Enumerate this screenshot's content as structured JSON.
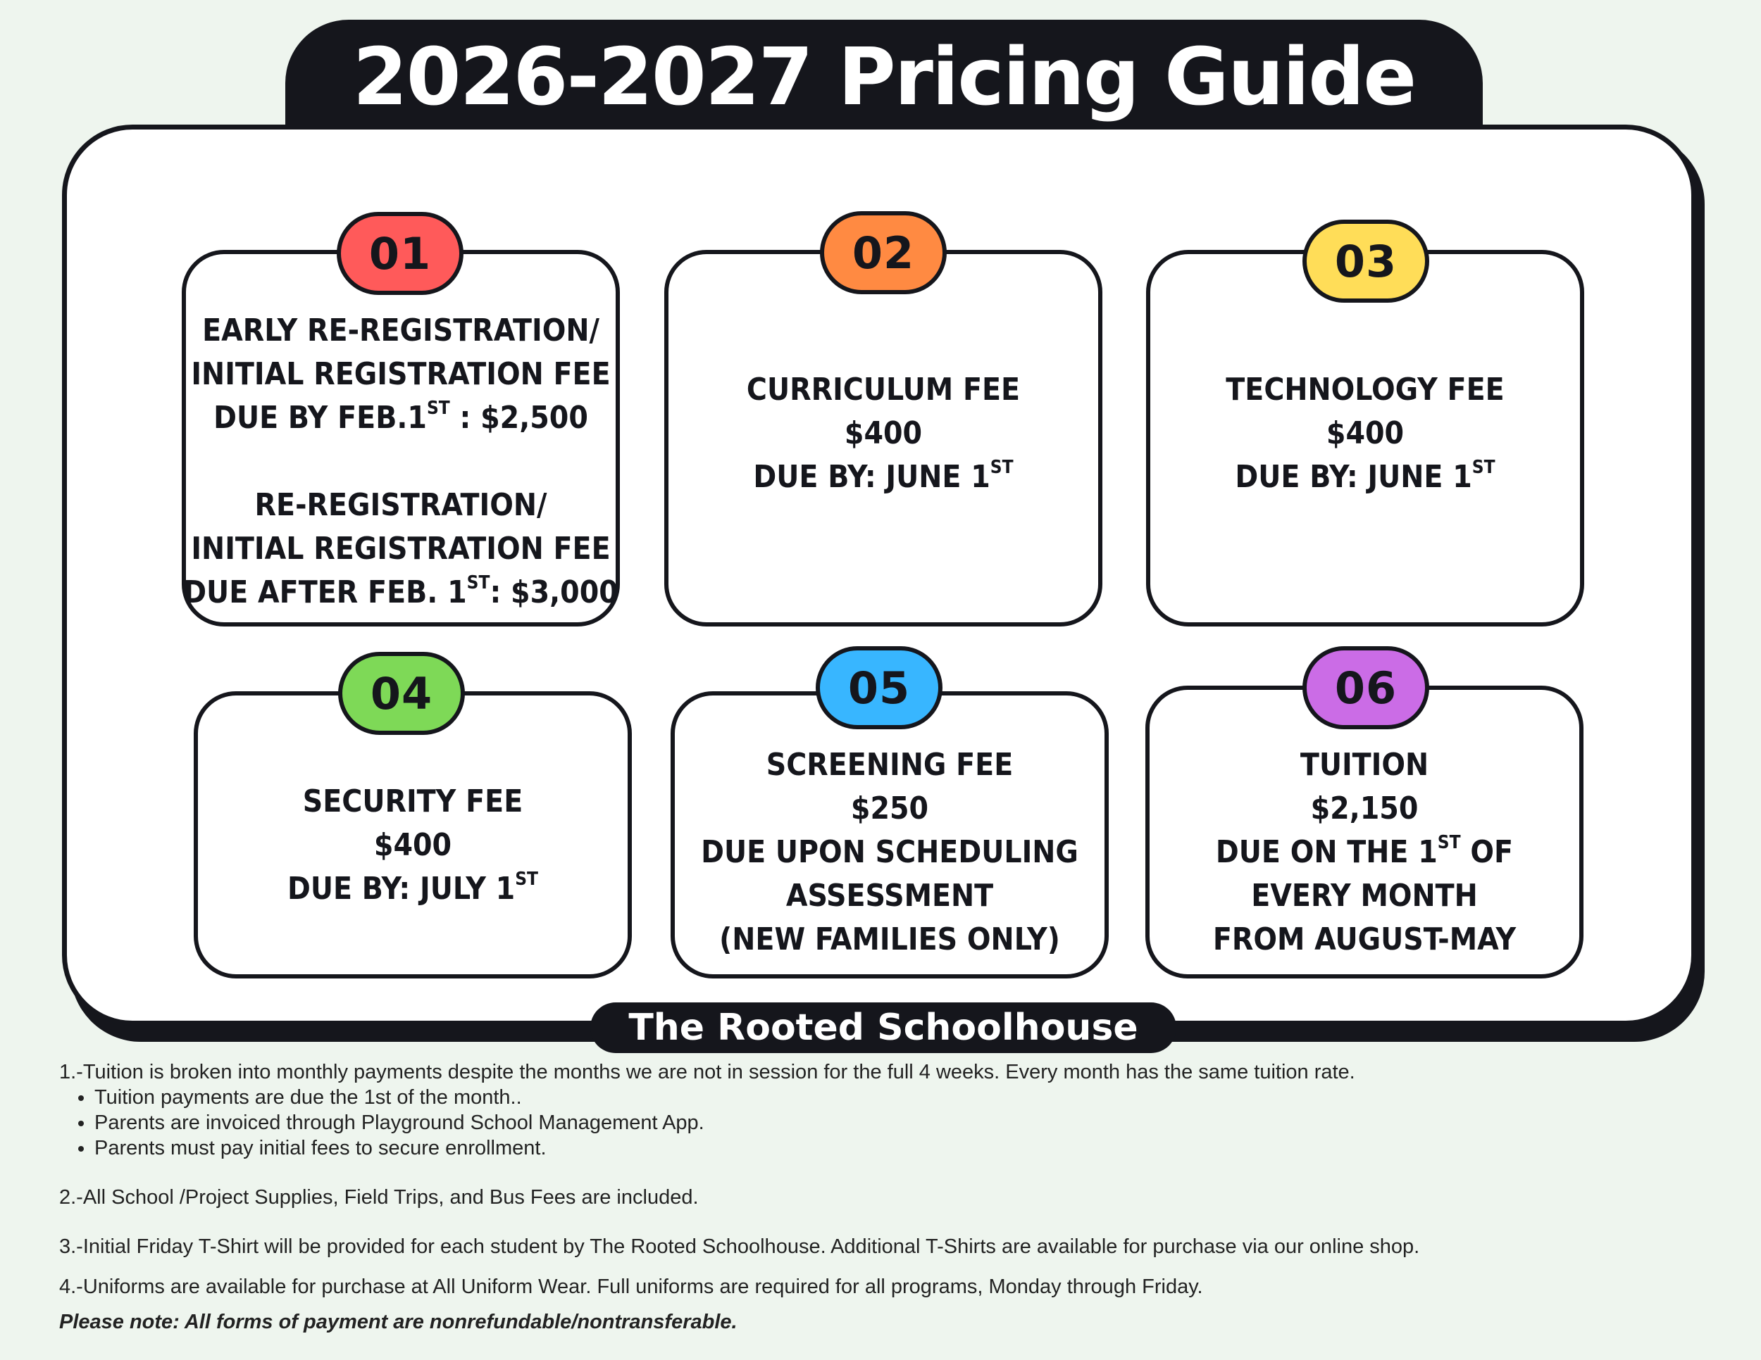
{
  "title": "2026-2027 Pricing Guide",
  "footer_title": "The Rooted Schoolhouse",
  "colors": {
    "dark": "#15161c",
    "badge_01": "#ff5a5a",
    "badge_02": "#ff8a42",
    "badge_03": "#ffdd58",
    "badge_04": "#7ed957",
    "badge_05": "#38b6ff",
    "badge_06": "#cb6ce6"
  },
  "cards": [
    {
      "badge": "01",
      "lines": [
        "EARLY RE-REGISTRATION/",
        "INITIAL REGISTRATION FEE",
        "DUE BY FEB.1",
        "ST",
        " : $2,500",
        "RE-REGISTRATION/",
        "INITIAL REGISTRATION FEE",
        "DUE AFTER FEB. 1",
        "ST",
        ": $3,000"
      ]
    },
    {
      "badge": "02",
      "lines": [
        "CURRICULUM FEE",
        "$400",
        "DUE BY: JUNE 1",
        "ST"
      ]
    },
    {
      "badge": "03",
      "lines": [
        "TECHNOLOGY FEE",
        "$400",
        "DUE BY: JUNE 1",
        "ST"
      ]
    },
    {
      "badge": "04",
      "lines": [
        "SECURITY FEE",
        "$400",
        "DUE BY: JULY 1",
        "ST"
      ]
    },
    {
      "badge": "05",
      "lines": [
        "SCREENING FEE",
        "$250",
        "DUE UPON SCHEDULING",
        "ASSESSMENT",
        "(NEW FAMILIES ONLY)"
      ]
    },
    {
      "badge": "06",
      "lines": [
        "TUITION",
        "$2,150",
        "DUE ON THE 1",
        "ST",
        " OF",
        "EVERY MONTH",
        "FROM  AUGUST-MAY"
      ]
    }
  ],
  "notes": {
    "n1": "1.-Tuition is broken into monthly payments despite the months we are not in session for the full 4 weeks. Every month has the same tuition rate.",
    "bullets": [
      "Tuition payments are due the 1st of the month..",
      "Parents are invoiced through Playground School Management App.",
      "Parents must pay initial fees to secure enrollment."
    ],
    "n2": "2.-All School /Project Supplies, Field Trips, and Bus Fees are included.",
    "n3": "3.-Initial Friday T-Shirt will be provided for each student by The Rooted Schoolhouse. Additional T-Shirts are available for purchase via our online shop.",
    "n4": "4.-Uniforms are available for purchase at All Uniform Wear. Full uniforms are required for all programs, Monday through Friday.",
    "final": "Please note: All forms of payment are nonrefundable/nontransferable."
  }
}
